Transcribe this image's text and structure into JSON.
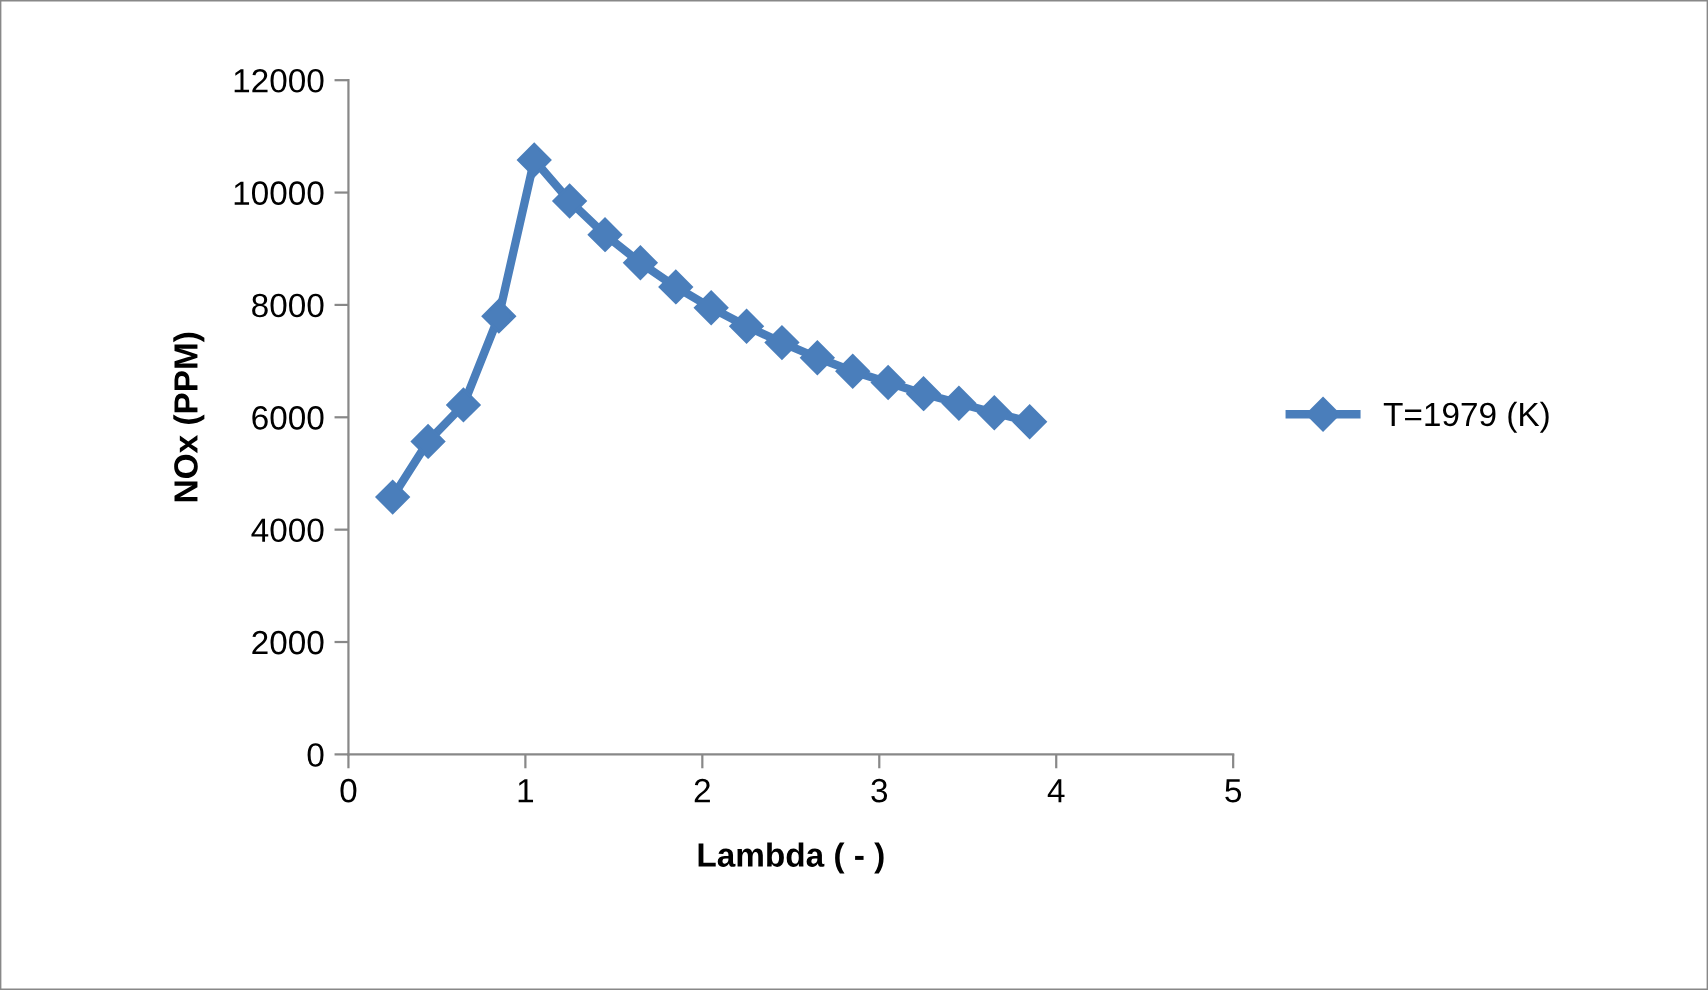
{
  "chart_data": {
    "type": "line",
    "xlabel": "Lambda ( - )",
    "ylabel": "NOx (PPM)",
    "x": [
      0.25,
      0.45,
      0.65,
      0.85,
      1.05,
      1.25,
      1.45,
      1.65,
      1.85,
      2.05,
      2.25,
      2.45,
      2.65,
      2.85,
      3.05,
      3.25,
      3.45,
      3.65,
      3.85
    ],
    "series": [
      {
        "name": "T=1979 (K)",
        "color": "#4a7ebb",
        "values": [
          4580,
          5570,
          6220,
          7800,
          10580,
          9850,
          9250,
          8750,
          8320,
          7950,
          7620,
          7330,
          7060,
          6820,
          6620,
          6420,
          6250,
          6080,
          5920
        ]
      }
    ],
    "xlim": [
      0,
      5
    ],
    "xticks": [
      0,
      1,
      2,
      3,
      4,
      5
    ],
    "ylim": [
      0,
      12000
    ],
    "yticks": [
      0,
      2000,
      4000,
      6000,
      8000,
      10000,
      12000
    ],
    "grid": false,
    "legend": "right",
    "marker": "diamond",
    "line_style": "solid"
  }
}
